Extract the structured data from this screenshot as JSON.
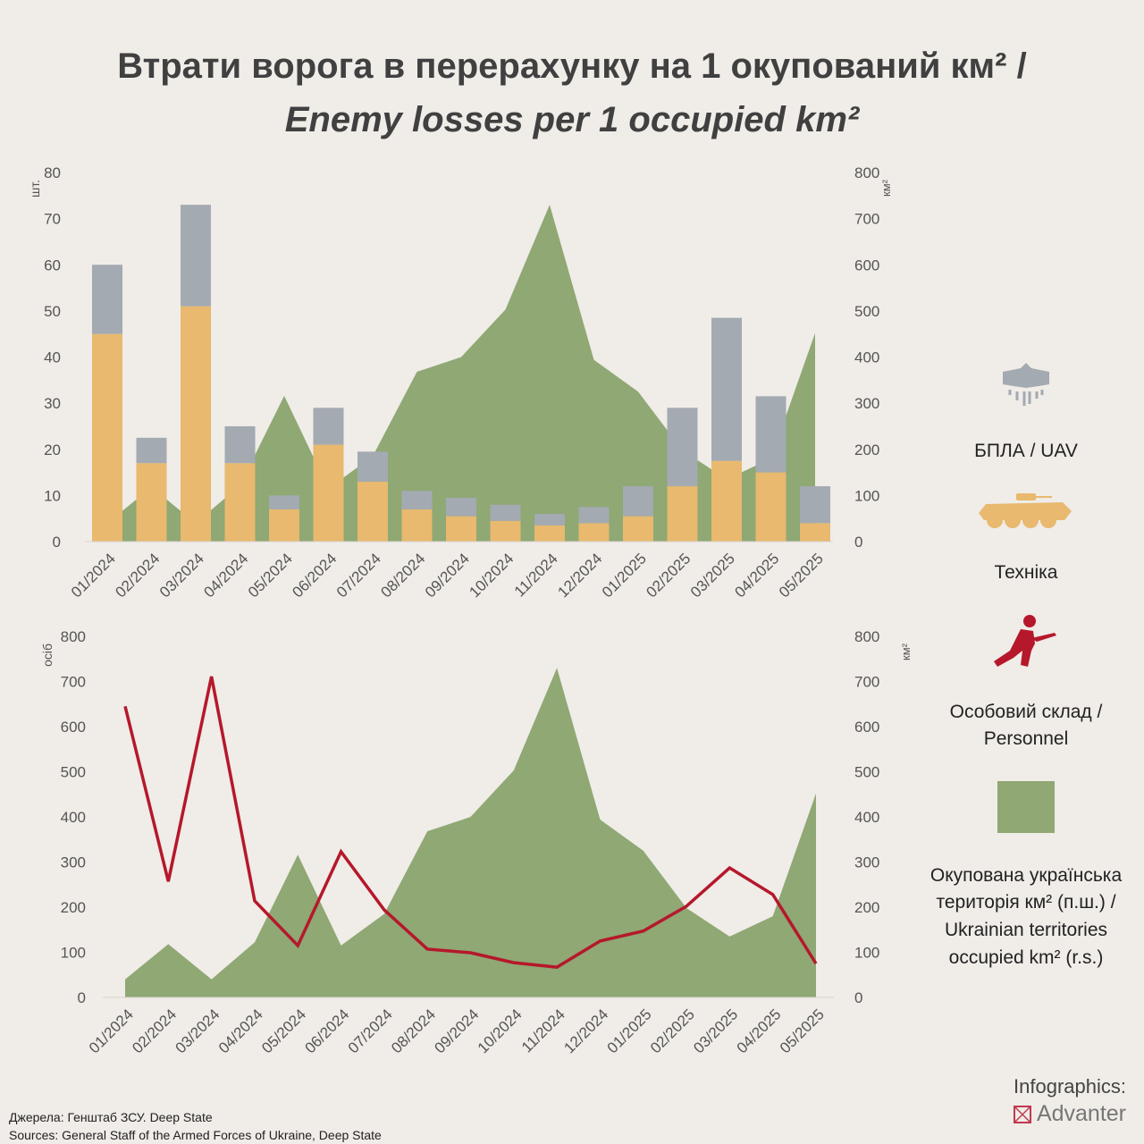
{
  "title": {
    "line1": "Втрати ворога в перерахунку на 1 окупований км² /",
    "line2": "Enemy losses per 1 occupied km²"
  },
  "colors": {
    "background": "#f0ece8",
    "uav": "#a3aab1",
    "vehicles": "#e8b96e",
    "personnel": "#b5182b",
    "territory": "#8fa874"
  },
  "chart_data": [
    {
      "type": "bar",
      "stacked": true,
      "categories": [
        "01/2024",
        "02/2024",
        "03/2024",
        "04/2024",
        "05/2024",
        "06/2024",
        "07/2024",
        "08/2024",
        "09/2024",
        "10/2024",
        "11/2024",
        "12/2024",
        "01/2025",
        "02/2025",
        "03/2025",
        "04/2025",
        "05/2025"
      ],
      "ylabel": "шт.",
      "ylim": [
        0,
        80
      ],
      "yticks": [
        0,
        10,
        20,
        30,
        40,
        50,
        60,
        70,
        80
      ],
      "y2label": "км²",
      "y2lim": [
        0,
        800
      ],
      "y2ticks": [
        0,
        100,
        200,
        300,
        400,
        500,
        600,
        700,
        800
      ],
      "series": [
        {
          "name": "Техніка",
          "axis": "left",
          "kind": "bar",
          "values": [
            45,
            17,
            51,
            17,
            7,
            21,
            13,
            7,
            5.5,
            4.5,
            3.5,
            4,
            5.5,
            12,
            17.5,
            15,
            4
          ]
        },
        {
          "name": "БПЛА / UAV",
          "axis": "left",
          "kind": "bar",
          "values": [
            15,
            5.5,
            22,
            8,
            3,
            8,
            6.5,
            4,
            4,
            3.5,
            2.5,
            3.5,
            6.5,
            17,
            31,
            16.5,
            8
          ]
        },
        {
          "name": "Окупована українська територія км² (п.ш.) / Ukrainian territories occupied km² (r.s.)",
          "axis": "right",
          "kind": "area",
          "values": [
            40,
            118,
            40,
            122,
            316,
            115,
            185,
            368,
            400,
            503,
            730,
            394,
            325,
            198,
            135,
            180,
            452
          ]
        }
      ],
      "grid": false
    },
    {
      "type": "line",
      "categories": [
        "01/2024",
        "02/2024",
        "03/2024",
        "04/2024",
        "05/2024",
        "06/2024",
        "07/2024",
        "08/2024",
        "09/2024",
        "10/2024",
        "11/2024",
        "12/2024",
        "01/2025",
        "02/2025",
        "03/2025",
        "04/2025",
        "05/2025"
      ],
      "ylabel": "осіб",
      "ylim": [
        0,
        800
      ],
      "yticks": [
        0,
        100,
        200,
        300,
        400,
        500,
        600,
        700,
        800
      ],
      "y2label": "км²",
      "y2lim": [
        0,
        800
      ],
      "y2ticks": [
        0,
        100,
        200,
        300,
        400,
        500,
        600,
        700,
        800
      ],
      "series": [
        {
          "name": "Окупована українська територія км² (п.ш.) / Ukrainian territories occupied km² (r.s.)",
          "axis": "right",
          "kind": "area",
          "values": [
            40,
            118,
            40,
            122,
            316,
            115,
            185,
            368,
            400,
            503,
            730,
            394,
            325,
            198,
            135,
            180,
            452
          ]
        },
        {
          "name": "Особовий склад / Personnel",
          "axis": "left",
          "kind": "line",
          "values": [
            645,
            257,
            711,
            214,
            115,
            323,
            194,
            107,
            99,
            77,
            67,
            125,
            147,
            202,
            287,
            228,
            75
          ]
        }
      ],
      "grid": false
    }
  ],
  "legend": {
    "uav": {
      "label": "БПЛА / UAV",
      "icon": "drone-icon"
    },
    "vehicles": {
      "label": "Техніка",
      "icon": "apc-icon"
    },
    "personnel": {
      "line1": "Особовий склад /",
      "line2": "Personnel",
      "icon": "soldier-icon"
    },
    "territory": {
      "line1": "Окупована українська",
      "line2": "територія км² (п.ш.) /",
      "line3": "Ukrainian territories",
      "line4": "occupied km² (r.s.)"
    }
  },
  "footer": {
    "sources_ua": "Джерела: Генштаб ЗСУ. Deep State",
    "sources_en": "Sources: General Staff of the Armed Forces of Ukraine,  Deep State",
    "credit_label": "Infographics:",
    "credit_brand": "Advanter"
  }
}
